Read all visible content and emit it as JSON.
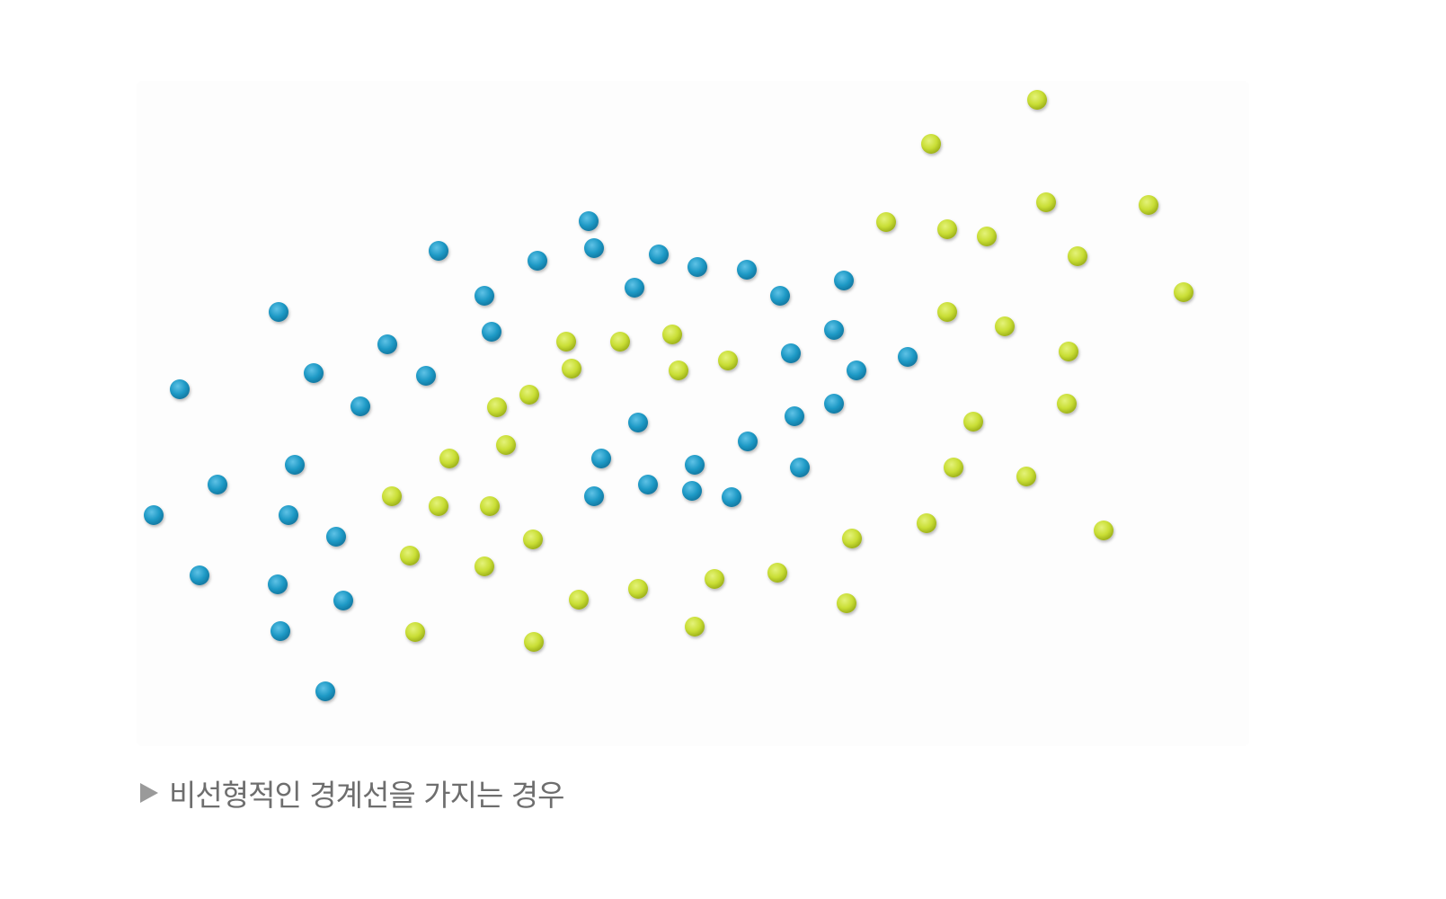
{
  "top_text": "",
  "figure": {
    "colors": {
      "class_a": "#1f9ac6",
      "class_b": "#c9de35",
      "background": "#fdfdfd"
    },
    "class_a_points": [],
    "class_b_points": []
  },
  "caption": {
    "marker_icon": "triangle-right-icon",
    "text": "비선형적인 경계선을 가지는 경우"
  }
}
